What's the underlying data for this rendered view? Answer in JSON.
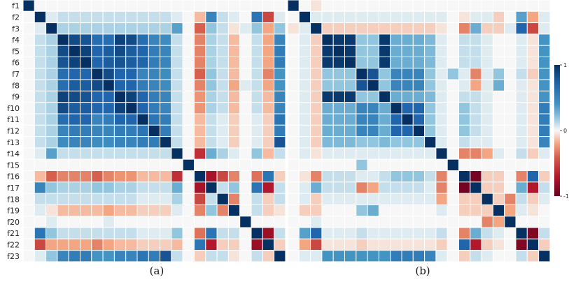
{
  "chart_data": {
    "type": "heatmap",
    "row_labels": [
      "f1",
      "f2",
      "f3",
      "f4",
      "f5",
      "f6",
      "f7",
      "f8",
      "f9",
      "f10",
      "f11",
      "f12",
      "f13",
      "f14",
      "f15",
      "f16",
      "f17",
      "f18",
      "f19",
      "f20",
      "f21",
      "f22",
      "f23"
    ],
    "colorbar": {
      "ticks": [
        "1",
        "0",
        "-1"
      ],
      "range": [
        -1,
        1
      ],
      "colors": [
        "#67001f",
        "#f7f7f7",
        "#053061"
      ]
    },
    "panels": [
      {
        "caption": "(a)",
        "matrix": [
          [
            1,
            0,
            0,
            0,
            0,
            0,
            0,
            0,
            0,
            0,
            0,
            0,
            0,
            0,
            0,
            0,
            0,
            0,
            0,
            0,
            0,
            0,
            0
          ],
          [
            0,
            1,
            0.05,
            0.1,
            0.1,
            0.1,
            0.1,
            0.1,
            0.1,
            0.1,
            0.1,
            0.1,
            0.1,
            0.05,
            0,
            -0.15,
            0.5,
            0.1,
            0.05,
            0,
            0.6,
            -0.5,
            0.05
          ],
          [
            0,
            0.05,
            1,
            0.15,
            0.15,
            0.15,
            0.15,
            0.15,
            0.15,
            0.15,
            0.15,
            0.15,
            0.15,
            0.35,
            0,
            -0.4,
            0.2,
            0.1,
            -0.05,
            0.05,
            0.2,
            -0.2,
            0.2
          ],
          [
            0,
            0.1,
            0.15,
            1,
            0.85,
            0.8,
            0.65,
            0.65,
            0.9,
            0.85,
            0.65,
            0.5,
            0.45,
            0.1,
            0,
            -0.3,
            0.15,
            0.1,
            -0.15,
            0,
            0.1,
            -0.2,
            0.5
          ],
          [
            0,
            0.1,
            0.15,
            0.85,
            1,
            0.9,
            0.7,
            0.75,
            0.85,
            0.75,
            0.7,
            0.55,
            0.5,
            0.1,
            0,
            -0.3,
            0.15,
            0.1,
            -0.15,
            0,
            0.1,
            -0.2,
            0.55
          ],
          [
            0,
            0.1,
            0.15,
            0.8,
            0.9,
            1,
            0.7,
            0.75,
            0.8,
            0.75,
            0.7,
            0.55,
            0.5,
            0.1,
            0,
            -0.3,
            0.15,
            0.1,
            -0.15,
            0,
            0.1,
            -0.2,
            0.55
          ],
          [
            0,
            0.1,
            0.15,
            0.65,
            0.7,
            0.7,
            1,
            0.85,
            0.7,
            0.7,
            0.5,
            0.5,
            0.45,
            0.1,
            0,
            -0.4,
            0.2,
            0.1,
            -0.15,
            0,
            0.1,
            -0.3,
            0.4
          ],
          [
            0,
            0.1,
            0.15,
            0.65,
            0.75,
            0.75,
            0.85,
            1,
            0.7,
            0.7,
            0.55,
            0.5,
            0.45,
            0.1,
            0,
            -0.3,
            0.2,
            0.1,
            -0.2,
            0.05,
            0.1,
            -0.2,
            0.4
          ],
          [
            0,
            0.1,
            0.15,
            0.9,
            0.85,
            0.8,
            0.7,
            0.7,
            1,
            0.9,
            0.7,
            0.55,
            0.5,
            0.1,
            0,
            -0.25,
            0.15,
            0.1,
            -0.15,
            0,
            0.1,
            -0.15,
            0.5
          ],
          [
            0,
            0.1,
            0.15,
            0.85,
            0.75,
            0.75,
            0.7,
            0.7,
            0.9,
            1,
            0.7,
            0.55,
            0.5,
            0.1,
            0,
            -0.25,
            0.15,
            0.1,
            -0.15,
            0,
            0.1,
            -0.15,
            0.5
          ],
          [
            0,
            0.1,
            0.15,
            0.65,
            0.7,
            0.7,
            0.5,
            0.55,
            0.7,
            0.7,
            1,
            0.6,
            0.55,
            0.1,
            0,
            -0.15,
            0.1,
            0.05,
            -0.1,
            0,
            0.05,
            -0.1,
            0.6
          ],
          [
            0,
            0.1,
            0.15,
            0.5,
            0.55,
            0.55,
            0.5,
            0.5,
            0.55,
            0.55,
            0.6,
            1,
            0.55,
            0.1,
            0,
            -0.15,
            0.1,
            0.05,
            -0.1,
            0,
            0.05,
            -0.1,
            0.55
          ],
          [
            0,
            0.1,
            0.15,
            0.45,
            0.5,
            0.5,
            0.45,
            0.45,
            0.5,
            0.5,
            0.55,
            0.55,
            1,
            0.1,
            0,
            -0.15,
            0.1,
            0.05,
            -0.1,
            0,
            0.05,
            -0.1,
            0.8
          ],
          [
            0,
            0.05,
            0.35,
            0.1,
            0.1,
            0.1,
            0.1,
            0.1,
            0.1,
            0.1,
            0.1,
            0.1,
            0.1,
            1,
            0,
            -0.6,
            0.3,
            0.15,
            0.05,
            0,
            0.2,
            -0.15,
            0.1
          ],
          [
            0,
            0,
            0,
            0,
            0,
            0,
            0,
            0,
            0,
            0,
            0,
            0,
            0,
            0,
            1,
            0,
            0,
            0,
            0,
            0,
            0,
            0,
            0
          ],
          [
            0,
            -0.15,
            -0.4,
            -0.3,
            -0.3,
            -0.3,
            -0.4,
            -0.3,
            -0.25,
            -0.25,
            -0.15,
            -0.15,
            -0.15,
            -0.6,
            0,
            1,
            -0.75,
            -0.5,
            -0.3,
            0,
            -0.35,
            0.6,
            -0.1
          ],
          [
            0,
            0.5,
            0.2,
            0.15,
            0.15,
            0.15,
            0.2,
            0.2,
            0.15,
            0.15,
            0.1,
            0.1,
            0.1,
            0.3,
            0,
            -0.75,
            1,
            0.1,
            0.2,
            0,
            0.6,
            -0.7,
            0.1
          ],
          [
            0,
            0.1,
            0.1,
            0.1,
            0.1,
            0.1,
            0.1,
            0.1,
            0.1,
            0.1,
            0.05,
            0.05,
            0.05,
            0.15,
            0,
            -0.5,
            0.1,
            1,
            -0.3,
            0,
            0.1,
            -0.1,
            0.1
          ],
          [
            0,
            0.05,
            -0.05,
            -0.15,
            -0.15,
            -0.15,
            -0.15,
            -0.2,
            -0.15,
            -0.15,
            -0.1,
            -0.1,
            -0.1,
            0.05,
            0,
            -0.3,
            0.2,
            -0.3,
            1,
            0,
            0.1,
            -0.1,
            -0.05
          ],
          [
            0,
            0,
            0.05,
            0,
            0,
            0,
            0,
            0.05,
            0,
            0,
            0,
            0,
            0,
            0,
            0,
            0,
            0,
            0,
            0,
            1,
            0,
            0,
            0
          ],
          [
            0,
            0.6,
            0.2,
            0.1,
            0.1,
            0.1,
            0.1,
            0.1,
            0.1,
            0.1,
            0.05,
            0.05,
            0.05,
            0.2,
            0,
            -0.35,
            0.6,
            0.1,
            0.1,
            0,
            1,
            -0.8,
            0.1
          ],
          [
            0,
            -0.5,
            -0.2,
            -0.2,
            -0.2,
            -0.2,
            -0.3,
            -0.2,
            -0.15,
            -0.15,
            -0.1,
            -0.1,
            -0.1,
            -0.15,
            0,
            0.6,
            -0.7,
            -0.1,
            -0.1,
            0,
            -0.8,
            1,
            -0.1
          ],
          [
            0,
            0.05,
            0.2,
            0.5,
            0.55,
            0.55,
            0.4,
            0.4,
            0.5,
            0.5,
            0.6,
            0.55,
            0.8,
            0.1,
            0,
            -0.1,
            0.1,
            0.1,
            -0.05,
            0,
            0.1,
            -0.1,
            1
          ]
        ]
      },
      {
        "caption": "(b)",
        "matrix": [
          [
            1,
            0,
            -0.05,
            0,
            0,
            0,
            0,
            0,
            0,
            0,
            0,
            0,
            0,
            0,
            0,
            0,
            0,
            0,
            0,
            0,
            0,
            0,
            0
          ],
          [
            0,
            1,
            0.05,
            0.05,
            0.05,
            0.05,
            0.05,
            0.05,
            0.05,
            0.05,
            0.05,
            0.05,
            0.05,
            0.05,
            0,
            -0.05,
            0.05,
            0.05,
            -0.1,
            0,
            0.35,
            -0.2,
            0.05
          ],
          [
            -0.05,
            0.05,
            1,
            -0.1,
            -0.1,
            -0.1,
            -0.1,
            -0.1,
            -0.1,
            -0.1,
            -0.1,
            -0.1,
            -0.1,
            -0.05,
            0,
            -0.3,
            0.3,
            -0.1,
            -0.1,
            0.05,
            0.7,
            -0.5,
            0.05
          ],
          [
            0,
            0.05,
            -0.1,
            1,
            0.95,
            0.95,
            0.2,
            0.2,
            0.95,
            0.3,
            0.3,
            0.3,
            0.25,
            0.05,
            0,
            0.1,
            0.1,
            0.05,
            0,
            0,
            0.05,
            -0.05,
            0.4
          ],
          [
            0,
            0.05,
            -0.1,
            0.95,
            1,
            0.95,
            0.2,
            0.2,
            0.95,
            0.3,
            0.3,
            0.3,
            0.25,
            0.05,
            0,
            0.1,
            0.1,
            0.05,
            0,
            0,
            0.05,
            -0.05,
            0.4
          ],
          [
            0,
            0.05,
            -0.1,
            0.95,
            0.95,
            1,
            0.2,
            0.2,
            0.95,
            0.3,
            0.3,
            0.3,
            0.25,
            0.05,
            0,
            0.1,
            0.1,
            0.05,
            0,
            0,
            0.05,
            -0.05,
            0.4
          ],
          [
            0,
            0.05,
            -0.1,
            0.2,
            0.2,
            0.2,
            1,
            0.8,
            0.2,
            0.5,
            0.5,
            0.5,
            0.2,
            0.05,
            0.2,
            0.05,
            -0.3,
            0.05,
            0.2,
            0,
            0.1,
            -0.1,
            0.4
          ],
          [
            0,
            0.05,
            -0.1,
            0.2,
            0.2,
            0.2,
            0.8,
            1,
            0.2,
            0.5,
            0.5,
            0.5,
            0.2,
            0.05,
            0,
            0.05,
            -0.2,
            0.05,
            0.3,
            0,
            0.05,
            -0.05,
            0.4
          ],
          [
            0,
            0.05,
            -0.1,
            0.95,
            0.95,
            0.95,
            0.2,
            0.2,
            1,
            0.3,
            0.3,
            0.3,
            0.25,
            0.05,
            0,
            0.1,
            0.1,
            0.05,
            0,
            0,
            0.05,
            -0.05,
            0.4
          ],
          [
            0,
            0.05,
            -0.1,
            0.3,
            0.3,
            0.3,
            0.5,
            0.5,
            0.3,
            1,
            0.7,
            0.7,
            0.2,
            0.05,
            0,
            0.2,
            0.1,
            0.05,
            0,
            0,
            0.05,
            -0.05,
            0.55
          ],
          [
            0,
            0.05,
            -0.1,
            0.3,
            0.3,
            0.3,
            0.5,
            0.5,
            0.3,
            0.7,
            1,
            0.7,
            0.2,
            0.05,
            0,
            0.2,
            0.1,
            0.05,
            0,
            0,
            0.05,
            -0.05,
            0.55
          ],
          [
            0,
            0.05,
            -0.1,
            0.3,
            0.3,
            0.3,
            0.5,
            0.5,
            0.3,
            0.7,
            0.7,
            1,
            0.2,
            0.05,
            0,
            0.2,
            0.1,
            0.05,
            0,
            0,
            0.05,
            -0.05,
            0.55
          ],
          [
            0,
            0.05,
            -0.1,
            0.25,
            0.25,
            0.25,
            0.2,
            0.2,
            0.25,
            0.2,
            0.2,
            0.2,
            1,
            0.05,
            0,
            0.1,
            0.05,
            0.05,
            0,
            0,
            0.05,
            -0.05,
            0.5
          ],
          [
            0,
            0.05,
            -0.05,
            0.05,
            0.05,
            0.05,
            0.05,
            0.05,
            0.05,
            0.05,
            0.05,
            0.05,
            0.05,
            1,
            0,
            -0.3,
            -0.3,
            -0.2,
            0.05,
            0,
            0.1,
            -0.1,
            0.05
          ],
          [
            0,
            0,
            0,
            0,
            0,
            0,
            0.2,
            0,
            0,
            0,
            0,
            0,
            0,
            0,
            1,
            0,
            0,
            0,
            0,
            0,
            0,
            0,
            0
          ],
          [
            0,
            -0.05,
            -0.3,
            0.1,
            0.1,
            0.1,
            0.05,
            0.05,
            0.1,
            0.2,
            0.2,
            0.2,
            0.1,
            -0.3,
            0,
            1,
            -0.95,
            -0.1,
            -0.1,
            0,
            -0.3,
            0.7,
            -0.1
          ],
          [
            0,
            0.05,
            0.3,
            0.1,
            0.1,
            0.1,
            -0.3,
            -0.2,
            0.1,
            0.1,
            0.1,
            0.1,
            0.05,
            -0.3,
            0,
            -0.95,
            1,
            -0.1,
            -0.1,
            0,
            0.3,
            -0.7,
            0.1
          ],
          [
            0,
            0.05,
            -0.1,
            0.05,
            0.05,
            0.05,
            0.05,
            0.05,
            0.05,
            0.05,
            0.05,
            0.05,
            0.05,
            -0.2,
            0,
            -0.1,
            -0.1,
            1,
            -0.1,
            -0.3,
            0.1,
            -0.1,
            0.05
          ],
          [
            0,
            -0.1,
            -0.1,
            0,
            0,
            0,
            0.2,
            0.3,
            0,
            0,
            0,
            0,
            0,
            0.05,
            0,
            -0.1,
            -0.1,
            -0.1,
            1,
            -0.2,
            0.05,
            -0.05,
            0
          ],
          [
            0,
            0,
            0.05,
            0,
            0,
            0,
            0,
            0,
            0,
            0,
            0,
            0,
            0,
            0,
            0,
            0,
            0,
            -0.3,
            -0.2,
            1,
            0,
            0,
            0
          ],
          [
            0,
            0.35,
            0.7,
            0.05,
            0.05,
            0.05,
            0.1,
            0.05,
            0.05,
            0.05,
            0.05,
            0.05,
            0.05,
            0.1,
            0,
            -0.3,
            0.3,
            0.1,
            0.05,
            0,
            1,
            -0.9,
            0.1
          ],
          [
            0,
            -0.2,
            -0.5,
            -0.05,
            -0.05,
            -0.05,
            -0.1,
            -0.05,
            -0.05,
            -0.05,
            -0.05,
            -0.05,
            -0.05,
            -0.1,
            0,
            0.7,
            -0.7,
            -0.1,
            -0.05,
            0,
            -0.9,
            1,
            -0.1
          ],
          [
            0,
            0.05,
            0.05,
            0.4,
            0.4,
            0.4,
            0.4,
            0.4,
            0.4,
            0.55,
            0.55,
            0.55,
            0.5,
            0.05,
            0,
            -0.1,
            0.1,
            0.05,
            0,
            0,
            0.1,
            -0.1,
            1
          ]
        ]
      }
    ]
  }
}
